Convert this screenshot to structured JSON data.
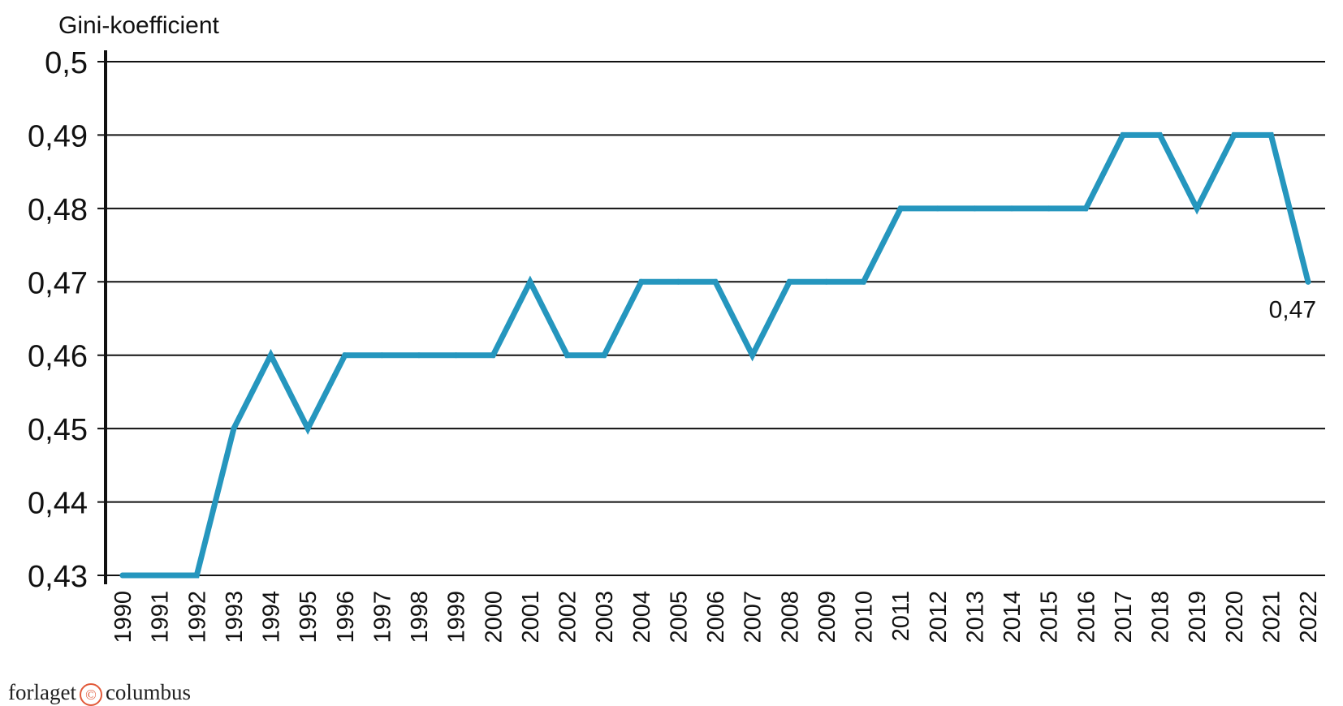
{
  "chart_data": {
    "type": "line",
    "ylabel": "Gini-koefficient",
    "ylim": [
      0.43,
      0.5
    ],
    "ytick_values": [
      0.43,
      0.44,
      0.45,
      0.46,
      0.47,
      0.48,
      0.49,
      0.5
    ],
    "ytick_labels": [
      "0,43",
      "0,44",
      "0,45",
      "0,46",
      "0,47",
      "0,48",
      "0,49",
      "0,5"
    ],
    "x": [
      "1990",
      "1991",
      "1992",
      "1993",
      "1994",
      "1995",
      "1996",
      "1997",
      "1998",
      "1999",
      "2000",
      "2001",
      "2002",
      "2003",
      "2004",
      "2005",
      "2006",
      "2007",
      "2008",
      "2009",
      "2010",
      "2011",
      "2012",
      "2013",
      "2014",
      "2015",
      "2016",
      "2017",
      "2018",
      "2019",
      "2020",
      "2021",
      "2022"
    ],
    "values": [
      0.43,
      0.43,
      0.43,
      0.45,
      0.46,
      0.45,
      0.46,
      0.46,
      0.46,
      0.46,
      0.46,
      0.47,
      0.46,
      0.46,
      0.47,
      0.47,
      0.47,
      0.46,
      0.47,
      0.47,
      0.47,
      0.48,
      0.48,
      0.48,
      0.48,
      0.48,
      0.48,
      0.49,
      0.49,
      0.48,
      0.49,
      0.49,
      0.47
    ],
    "line_color": "#2596be",
    "grid": true,
    "annotation": {
      "x": "2022",
      "text": "0,47"
    }
  },
  "footer": {
    "publisher_prefix": "forlaget",
    "publisher_mark": "©",
    "publisher_suffix": "columbus"
  }
}
